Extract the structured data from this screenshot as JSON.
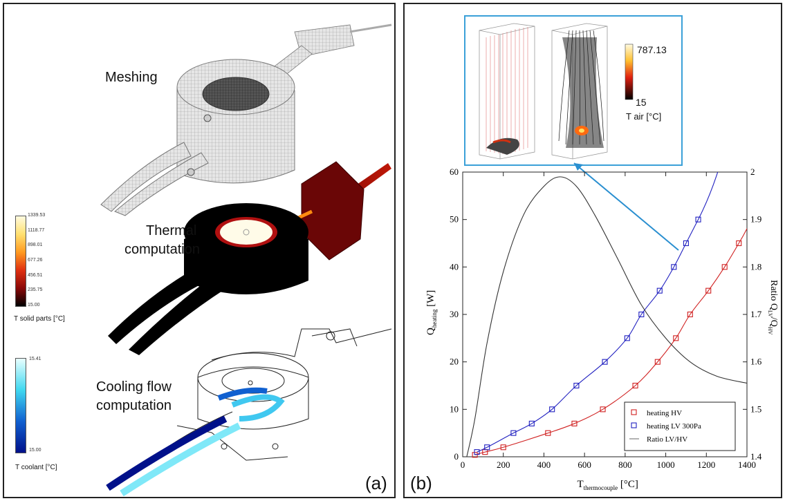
{
  "panel_a": {
    "label": "(a)",
    "meshing_label": "Meshing",
    "thermal_label": [
      "Thermal",
      "computation"
    ],
    "cooling_label": [
      "Cooling flow",
      "computation"
    ],
    "solid_colorbar": {
      "ticks": [
        "1339.53",
        "1118.77",
        "898.01",
        "677.26",
        "456.51",
        "235.75",
        "15.00"
      ],
      "title": "T solid parts [°C]",
      "colors": [
        "#fffbe0",
        "#ffe070",
        "#ff9a20",
        "#e03010",
        "#8a0808",
        "#000000"
      ]
    },
    "coolant_colorbar": {
      "ticks": [
        "15.41",
        "15.00"
      ],
      "title": "T coolant [°C]",
      "colors": [
        "#e8ffff",
        "#40d8f0",
        "#1060d0",
        "#00108a"
      ]
    }
  },
  "panel_b": {
    "label": "(b)",
    "inset": {
      "colorbar_max": "787.13",
      "colorbar_min": "15",
      "colorbar_title": "T air [°C]"
    }
  },
  "chart_data": {
    "type": "line",
    "xlabel": "T",
    "xlabel_sub": "thermocouple",
    "xlabel_unit": "[°C]",
    "ylabel": "Q",
    "ylabel_sub": "heating",
    "ylabel_unit": "[W]",
    "y2label": "Ratio Q",
    "y2label_sub": "LV",
    "y2label_mid": "/Q",
    "y2label_sub2": "HV",
    "xlim": [
      0,
      1400
    ],
    "ylim": [
      0,
      60
    ],
    "y2lim": [
      1.4,
      2
    ],
    "xticks": [
      "0",
      "200",
      "400",
      "600",
      "800",
      "1000",
      "1200",
      "1400"
    ],
    "yticks": [
      "0",
      "10",
      "20",
      "30",
      "40",
      "50",
      "60"
    ],
    "y2ticks": [
      "1.4",
      "1.5",
      "1.6",
      "1.7",
      "1.8",
      "1.9",
      "2"
    ],
    "legend_position": "bottom-right",
    "series": [
      {
        "name": "heating HV",
        "color": "#d02020",
        "marker": "square",
        "axis": "left",
        "x": [
          60,
          110,
          200,
          420,
          550,
          690,
          850,
          960,
          1050,
          1120,
          1210,
          1290,
          1360
        ],
        "y": [
          0.4,
          1,
          2,
          5,
          7,
          10,
          15,
          20,
          25,
          30,
          35,
          40,
          45
        ]
      },
      {
        "name": "heating LV 300Pa",
        "color": "#2020c0",
        "marker": "square",
        "axis": "left",
        "x": [
          70,
          120,
          250,
          340,
          440,
          560,
          700,
          810,
          880,
          970,
          1040,
          1100,
          1160
        ],
        "y": [
          1,
          2,
          5,
          7,
          10,
          15,
          20,
          25,
          30,
          35,
          40,
          45,
          50
        ]
      },
      {
        "name": "Ratio LV/HV",
        "color": "#333333",
        "marker": "none",
        "axis": "right",
        "x": [
          20,
          60,
          120,
          200,
          300,
          400,
          480,
          560,
          650,
          760,
          880,
          1000,
          1120,
          1250,
          1400
        ],
        "y": [
          1.4,
          1.48,
          1.64,
          1.79,
          1.91,
          1.97,
          1.99,
          1.97,
          1.91,
          1.82,
          1.72,
          1.65,
          1.6,
          1.57,
          1.555
        ]
      }
    ]
  }
}
